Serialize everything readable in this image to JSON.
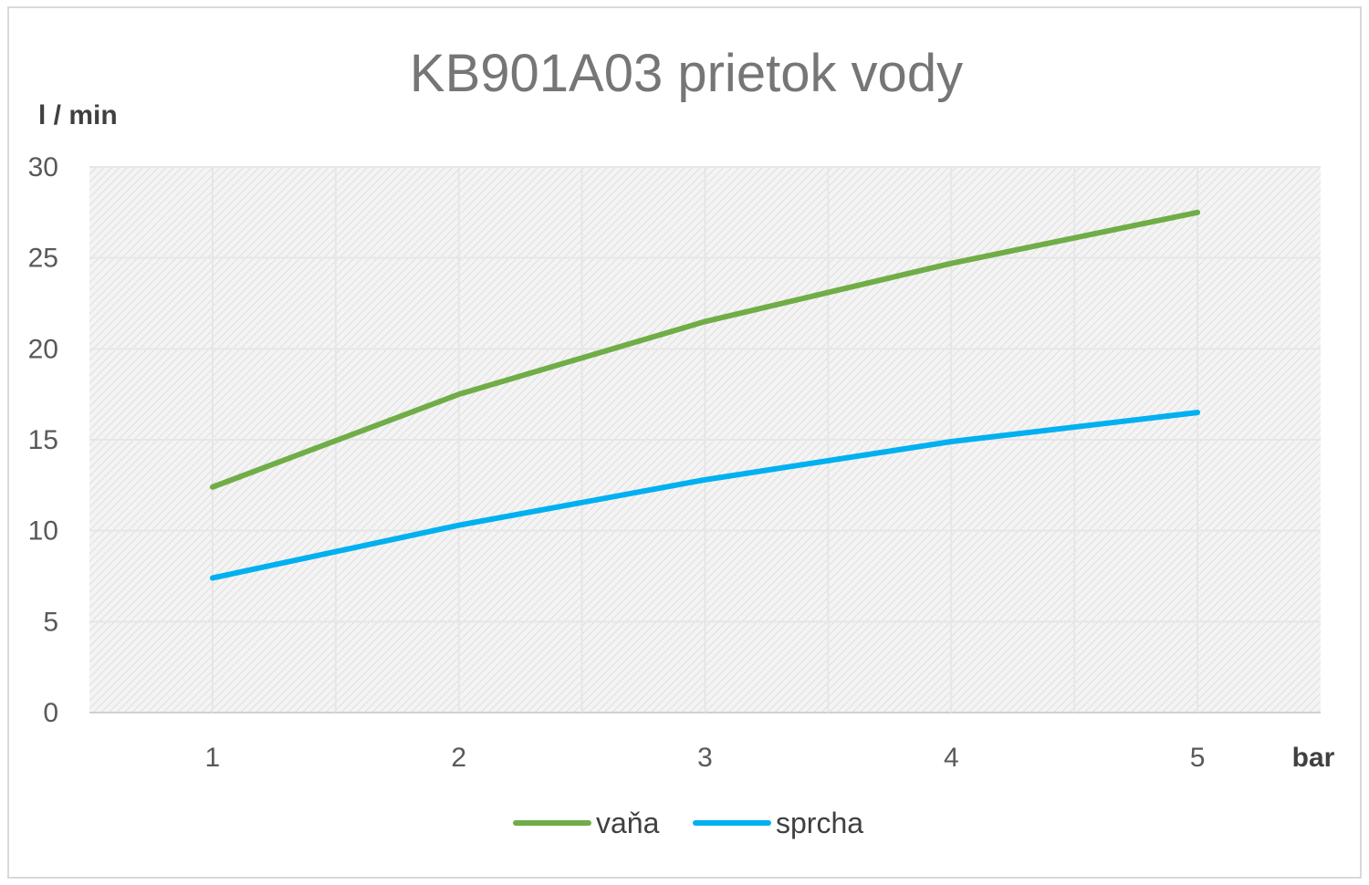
{
  "chart_data": {
    "type": "line",
    "title": "KB901A03 prietok vody",
    "xlabel": "bar",
    "ylabel": "l / min",
    "categories": [
      "1",
      "2",
      "3",
      "4",
      "5"
    ],
    "x": [
      1,
      2,
      3,
      4,
      5
    ],
    "ylim": [
      0,
      30
    ],
    "yticks": [
      "0",
      "5",
      "10",
      "15",
      "20",
      "25",
      "30"
    ],
    "grid": true,
    "legend": "bottom",
    "series": [
      {
        "name": "vaňa",
        "color": "#70ad47",
        "values": [
          12.4,
          17.5,
          21.5,
          24.7,
          27.5
        ]
      },
      {
        "name": "sprcha",
        "color": "#00b0f0",
        "values": [
          7.4,
          10.3,
          12.8,
          14.9,
          16.5
        ]
      }
    ]
  }
}
